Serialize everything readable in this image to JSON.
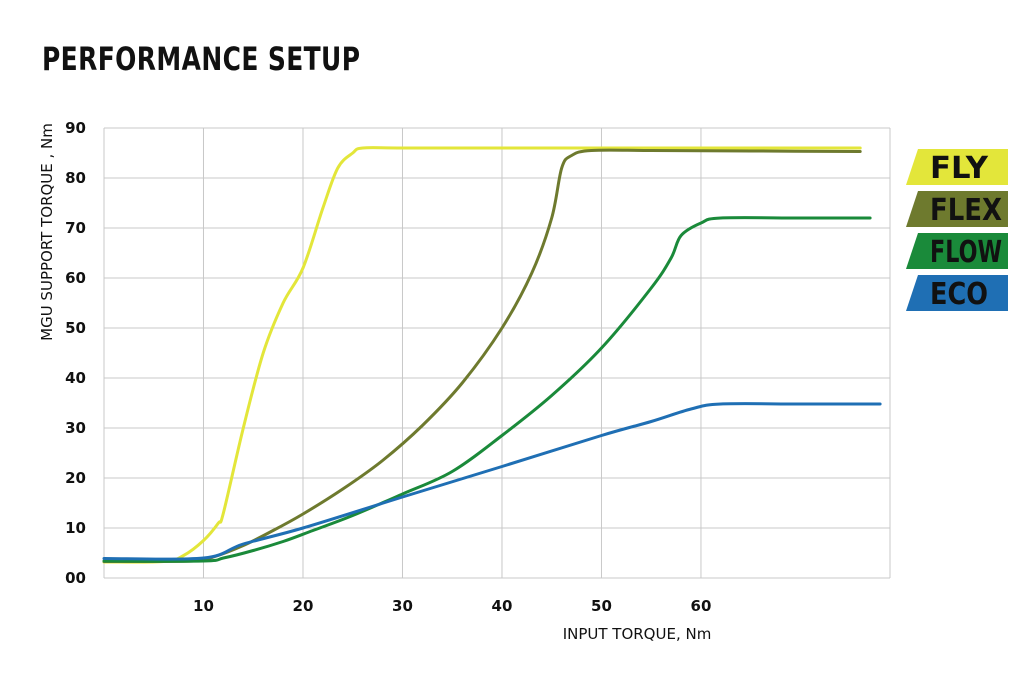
{
  "chart_data": {
    "type": "line",
    "title": "PERFORMANCE SETUP",
    "xlabel": "INPUT TORQUE, Nm",
    "ylabel": "MGU SUPPORT TORQUE , Nm",
    "xlim": [
      0,
      79
    ],
    "ylim": [
      0,
      90
    ],
    "x_ticks": [
      10,
      20,
      30,
      40,
      50,
      60
    ],
    "y_ticks": [
      {
        "v": 0,
        "label": "00"
      },
      {
        "v": 10,
        "label": "10"
      },
      {
        "v": 20,
        "label": "20"
      },
      {
        "v": 30,
        "label": "30"
      },
      {
        "v": 40,
        "label": "40"
      },
      {
        "v": 50,
        "label": "50"
      },
      {
        "v": 60,
        "label": "60"
      },
      {
        "v": 70,
        "label": "70"
      },
      {
        "v": 80,
        "label": "80"
      },
      {
        "v": 90,
        "label": "90"
      }
    ],
    "grid": true,
    "legend_position": "right",
    "series": [
      {
        "name": "FLY",
        "color": "#e3e63a",
        "text_color": "#111111",
        "points": [
          [
            0,
            3.2
          ],
          [
            6,
            3.3
          ],
          [
            8,
            4.5
          ],
          [
            10,
            7.5
          ],
          [
            11.5,
            11
          ],
          [
            12,
            13
          ],
          [
            14,
            30
          ],
          [
            16,
            45
          ],
          [
            18,
            55
          ],
          [
            20,
            62
          ],
          [
            22,
            74
          ],
          [
            23.5,
            82
          ],
          [
            25,
            85
          ],
          [
            26,
            86
          ],
          [
            30,
            86
          ],
          [
            40,
            86
          ],
          [
            50,
            86
          ],
          [
            60,
            86
          ],
          [
            76,
            86
          ]
        ]
      },
      {
        "name": "FLEX",
        "color": "#6e7a2e",
        "text_color": "#111111",
        "points": [
          [
            0,
            3.3
          ],
          [
            9,
            3.4
          ],
          [
            11,
            4.2
          ],
          [
            14,
            6.5
          ],
          [
            17,
            9.5
          ],
          [
            20,
            12.8
          ],
          [
            24,
            17.8
          ],
          [
            28,
            23.5
          ],
          [
            32,
            30.5
          ],
          [
            36,
            39
          ],
          [
            40,
            50
          ],
          [
            43,
            61
          ],
          [
            45,
            72
          ],
          [
            46,
            82
          ],
          [
            47,
            84.5
          ],
          [
            49,
            85.5
          ],
          [
            55,
            85.5
          ],
          [
            65,
            85.4
          ],
          [
            76,
            85.3
          ]
        ]
      },
      {
        "name": "FLOW",
        "color": "#1a8a3a",
        "text_color": "#111111",
        "points": [
          [
            0,
            3.4
          ],
          [
            10,
            3.4
          ],
          [
            12,
            4
          ],
          [
            15,
            5.5
          ],
          [
            18,
            7.3
          ],
          [
            21,
            9.5
          ],
          [
            25,
            12.5
          ],
          [
            30,
            16.8
          ],
          [
            35,
            21.3
          ],
          [
            40,
            28.5
          ],
          [
            45,
            36.5
          ],
          [
            50,
            46
          ],
          [
            55,
            58
          ],
          [
            57,
            64
          ],
          [
            58,
            68.5
          ],
          [
            60,
            71
          ],
          [
            62,
            72
          ],
          [
            70,
            72
          ],
          [
            77,
            72
          ]
        ]
      },
      {
        "name": "ECO",
        "color": "#1f6fb4",
        "text_color": "#111111",
        "points": [
          [
            0,
            3.9
          ],
          [
            10,
            4
          ],
          [
            14,
            6.8
          ],
          [
            20,
            10
          ],
          [
            30,
            16.2
          ],
          [
            40,
            22.3
          ],
          [
            50,
            28.5
          ],
          [
            55,
            31.3
          ],
          [
            59,
            33.8
          ],
          [
            62,
            34.8
          ],
          [
            70,
            34.8
          ],
          [
            78,
            34.8
          ]
        ]
      }
    ]
  }
}
